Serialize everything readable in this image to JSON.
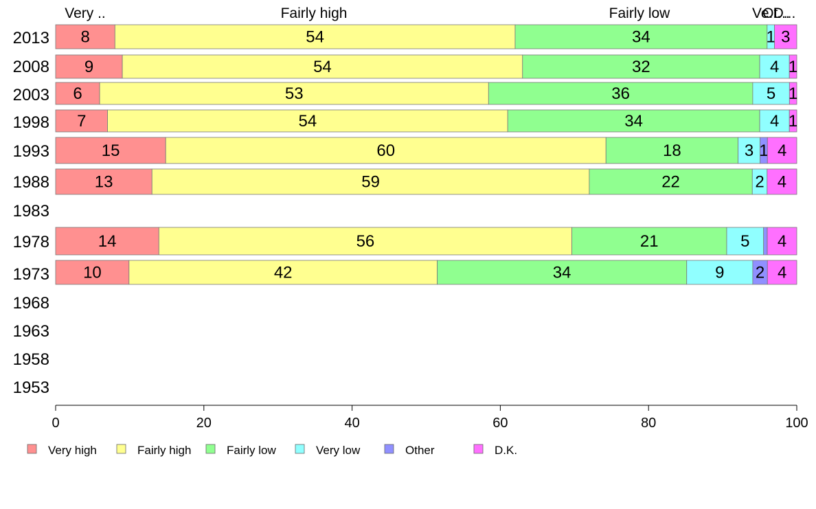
{
  "chart_data": {
    "type": "bar",
    "orientation": "horizontal",
    "stacked": true,
    "categories": [
      "2013",
      "2008",
      "2003",
      "1998",
      "1993",
      "1988",
      "1983",
      "1978",
      "1973",
      "1968",
      "1963",
      "1958",
      "1953"
    ],
    "series": [
      {
        "name": "Very high",
        "color": "#ff9090",
        "values": [
          8,
          9,
          6,
          7,
          15,
          13,
          null,
          14,
          10,
          null,
          null,
          null,
          null
        ]
      },
      {
        "name": "Fairly high",
        "color": "#ffff90",
        "values": [
          54,
          54,
          53,
          54,
          60,
          59,
          null,
          56,
          42,
          null,
          null,
          null,
          null
        ]
      },
      {
        "name": "Fairly low",
        "color": "#90ff90",
        "values": [
          34,
          32,
          36,
          34,
          18,
          22,
          null,
          21,
          34,
          null,
          null,
          null,
          null
        ]
      },
      {
        "name": "Very low",
        "color": "#90ffff",
        "values": [
          1,
          4,
          5,
          4,
          3,
          2,
          null,
          5,
          9,
          null,
          null,
          null,
          null
        ]
      },
      {
        "name": "Other",
        "color": "#9090ff",
        "values": [
          0,
          0,
          0,
          0,
          1,
          0,
          null,
          0.5,
          2,
          null,
          null,
          null,
          null
        ]
      },
      {
        "name": "D.K.",
        "color": "#ff70ff",
        "values": [
          3,
          1,
          1,
          1,
          4,
          4,
          null,
          4,
          4,
          null,
          null,
          null,
          null
        ]
      }
    ],
    "top_labels": [
      "Very ..",
      "Fairly high",
      "Fairly low",
      "Ve...",
      "Ot...",
      "D..."
    ],
    "x_ticks": [
      0,
      20,
      40,
      60,
      80,
      100
    ],
    "xlim": [
      0,
      100
    ],
    "legend_position": "bottom",
    "grid": false
  }
}
